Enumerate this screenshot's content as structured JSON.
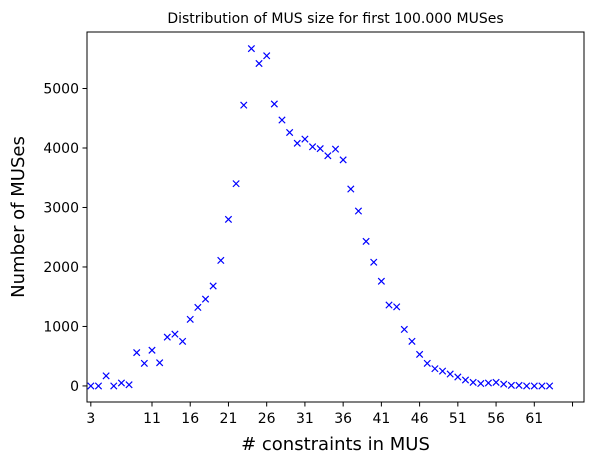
{
  "chart_data": {
    "type": "scatter",
    "title": "Distribution of MUS size for first 100.000 MUSes",
    "xlabel": "# constraints in MUS",
    "ylabel": "Number of MUSes",
    "xlim": [
      2.5,
      67.5
    ],
    "ylim": [
      -270,
      5950
    ],
    "xticks": [
      3,
      11,
      16,
      21,
      26,
      31,
      36,
      41,
      46,
      51,
      56,
      61,
      66
    ],
    "xtick_labels": [
      "3",
      "11",
      "16",
      "21",
      "26",
      "31",
      "36",
      "41",
      "46",
      "51",
      "56",
      "61",
      ""
    ],
    "yticks": [
      0,
      1000,
      2000,
      3000,
      4000,
      5000
    ],
    "ytick_labels": [
      "0",
      "1000",
      "2000",
      "3000",
      "4000",
      "5000"
    ],
    "marker": "x",
    "color": "#0000ff",
    "grid": false,
    "series": [
      {
        "name": "",
        "x": [
          3,
          4,
          5,
          6,
          7,
          8,
          9,
          10,
          11,
          12,
          13,
          14,
          15,
          16,
          17,
          18,
          19,
          20,
          21,
          22,
          23,
          24,
          25,
          26,
          27,
          28,
          29,
          30,
          31,
          32,
          33,
          34,
          35,
          36,
          37,
          38,
          39,
          40,
          41,
          42,
          43,
          44,
          45,
          46,
          47,
          48,
          49,
          50,
          51,
          52,
          53,
          54,
          55,
          56,
          57,
          58,
          59,
          60,
          61,
          62,
          63
        ],
        "y": [
          0,
          0,
          170,
          0,
          50,
          20,
          560,
          380,
          600,
          390,
          820,
          870,
          750,
          1120,
          1320,
          1460,
          1680,
          2110,
          2800,
          3400,
          4720,
          5670,
          5420,
          5550,
          4740,
          4470,
          4260,
          4080,
          4150,
          4020,
          3990,
          3870,
          3980,
          3800,
          3310,
          2940,
          2430,
          2080,
          1760,
          1360,
          1330,
          950,
          750,
          530,
          380,
          290,
          250,
          200,
          150,
          100,
          60,
          40,
          50,
          60,
          30,
          10,
          10,
          0,
          0,
          0,
          0
        ]
      }
    ]
  }
}
